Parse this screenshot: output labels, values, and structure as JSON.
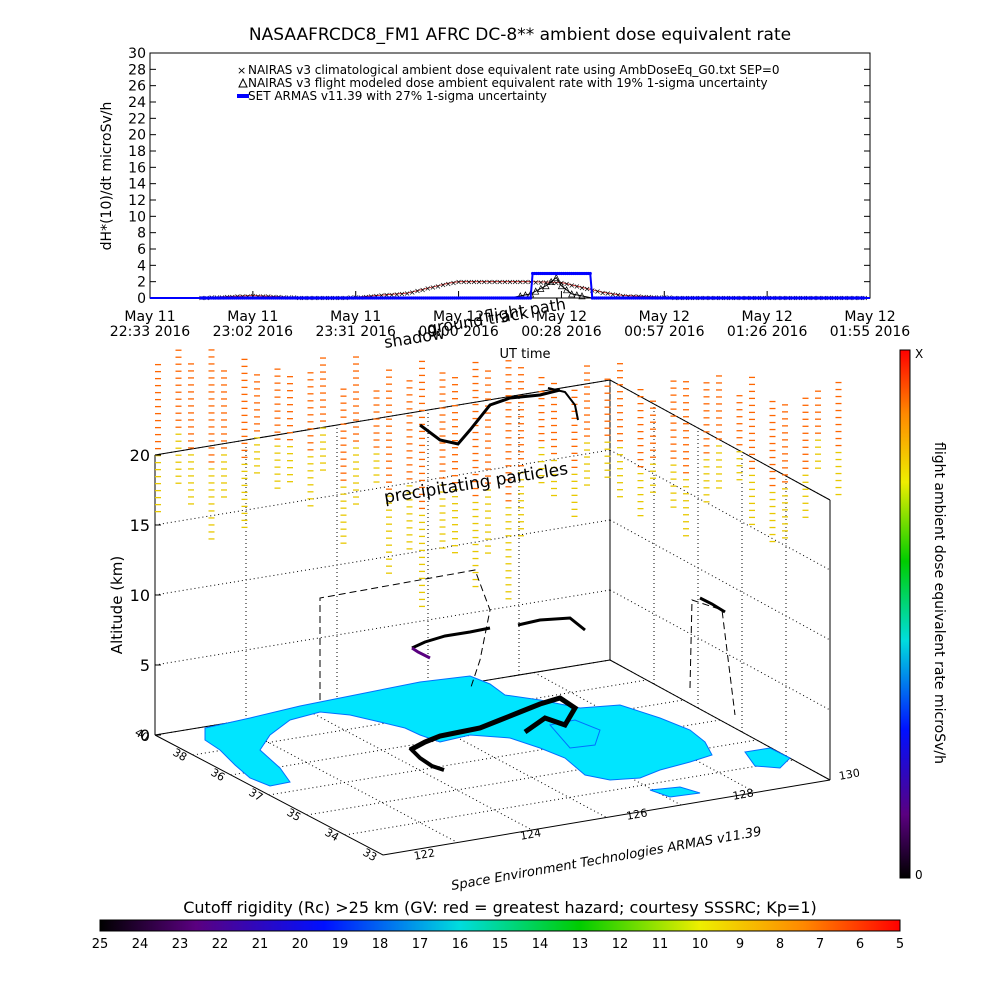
{
  "chart_data": [
    {
      "type": "line",
      "title": "NASAAFRCDC8_FM1 AFRC DC-8** ambient dose equivalent rate",
      "ylabel": "dH*(10)/dt microSv/h",
      "xlabel": "UT time",
      "ylim": [
        0,
        30
      ],
      "yticks": [
        0,
        2,
        4,
        6,
        8,
        10,
        12,
        14,
        16,
        18,
        20,
        22,
        24,
        26,
        28,
        30
      ],
      "xticks": [
        {
          "l1": "May 11",
          "l2": "22:33 2016"
        },
        {
          "l1": "May 11",
          "l2": "23:02 2016"
        },
        {
          "l1": "May 11",
          "l2": "23:31 2016"
        },
        {
          "l1": "May 12",
          "l2": "00:00 2016"
        },
        {
          "l1": "May 12",
          "l2": "00:28 2016"
        },
        {
          "l1": "May 12",
          "l2": "00:57 2016"
        },
        {
          "l1": "May 12",
          "l2": "01:26 2016"
        },
        {
          "l1": "May 12",
          "l2": "01:55 2016"
        }
      ],
      "legend": [
        "NAIRAS v3 climatological ambient dose equivalent rate using AmbDoseEq_G0.txt SEP=0",
        "NAIRAS v3 flight modeled dose ambient equivalent rate with 19% 1-sigma uncertainty",
        "SET ARMAS v11.39 with 27% 1-sigma uncertainty"
      ],
      "legend_position": "top",
      "series": [
        {
          "color": "#cc3333",
          "marker": "x",
          "x": [
            0.0,
            0.25,
            0.5,
            1.0,
            1.5,
            2.0,
            2.5,
            2.7,
            2.9,
            3.0,
            3.2,
            3.5,
            3.7,
            4.0,
            4.2,
            4.4,
            4.6,
            5.0,
            5.5,
            6.0,
            6.5,
            7.0
          ],
          "values": [
            0.0,
            0.0,
            0.05,
            0.3,
            0.05,
            0.1,
            0.6,
            1.2,
            1.8,
            2.0,
            2.0,
            2.0,
            2.0,
            1.9,
            1.3,
            0.7,
            0.3,
            0.1,
            0.05,
            0.05,
            0.05,
            0.05
          ]
        },
        {
          "color": "#000000",
          "marker": "triangle",
          "x": [
            0.0,
            1.0,
            2.0,
            3.0,
            3.5,
            3.7,
            3.85,
            3.95,
            4.0,
            4.1,
            4.3,
            5.0,
            6.0,
            7.0
          ],
          "values": [
            0.0,
            0.0,
            0.0,
            0.0,
            0.0,
            0.5,
            1.5,
            2.5,
            1.5,
            0.5,
            0.0,
            0.0,
            0.0,
            0.0
          ]
        },
        {
          "color": "#0000ff",
          "marker": "dot",
          "x": [
            0.0,
            1.0,
            2.0,
            3.0,
            3.7,
            3.72,
            4.0,
            4.28,
            4.3,
            5.0,
            6.0,
            7.0
          ],
          "values": [
            0.0,
            0.0,
            0.0,
            0.0,
            0.0,
            3.0,
            3.0,
            3.0,
            0.0,
            0.0,
            0.0,
            0.0
          ]
        }
      ]
    },
    {
      "type": "scatter",
      "zlabel": "Altitude (km)",
      "zlim": [
        0,
        20
      ],
      "zticks": [
        0,
        5,
        10,
        15,
        20
      ],
      "lat_ticks": [
        "40",
        "38",
        "36",
        "37",
        "35",
        "34",
        "33"
      ],
      "lon_ticks": [
        "122",
        "124",
        "126",
        "128",
        "130"
      ],
      "annotations": {
        "precip": "precipitating particles",
        "shadow": "shadow",
        "ground": "ground track",
        "flight": "flight path"
      },
      "credit": "Space Environment Technologies ARMAS v11.39",
      "right_colorbar": {
        "label": "flight ambient dose equivalent rate microSv/h",
        "max_label": "X",
        "min_label": "0"
      },
      "bottom_colorbar": {
        "title": "Cutoff rigidity (Rc) >25 km (GV: red = greatest hazard; courtesy SSSRC; Kp=1)",
        "labels": [
          "25",
          "24",
          "23",
          "22",
          "21",
          "20",
          "19",
          "18",
          "17",
          "16",
          "15",
          "14",
          "13",
          "12",
          "11",
          "10",
          "9",
          "8",
          "7",
          "6",
          "5"
        ]
      },
      "colors": {
        "land": "#00e5ff",
        "flight": "#000000",
        "precip_high": "#ff6600",
        "precip_low": "#e8c800"
      }
    }
  ]
}
